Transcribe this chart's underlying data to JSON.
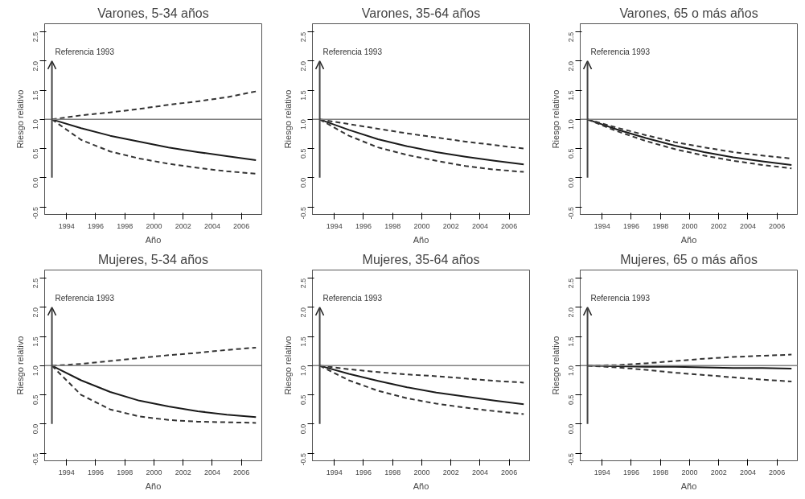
{
  "chart_data": [
    {
      "type": "line",
      "title": "Varones, 5-34 años",
      "xlabel": "Año",
      "ylabel": "Riesgo relativo",
      "x": [
        1993,
        1995,
        1997,
        1999,
        2001,
        2003,
        2005,
        2007
      ],
      "xlim": [
        1992.5,
        2007.4
      ],
      "xticks": [
        1994,
        1996,
        1998,
        2000,
        2002,
        2004,
        2006
      ],
      "ylim": [
        -0.63,
        2.64
      ],
      "yticks": [
        {
          "value": -0.5,
          "label": "-0.5"
        },
        {
          "value": 0,
          "label": "0.0"
        },
        {
          "value": 0.5,
          "label": "0.5"
        },
        {
          "value": 1,
          "label": "1.0"
        },
        {
          "value": 1.5,
          "label": "1.5"
        },
        {
          "value": 2,
          "label": "2.0"
        },
        {
          "value": 2.5,
          "label": "2.5"
        }
      ],
      "grid": false,
      "ref_lines": [
        {
          "axis": "y",
          "value": 1,
          "color": "#808080"
        }
      ],
      "annotations": [
        "Referencia 1993"
      ],
      "series": [
        {
          "color": "#1a1a1a",
          "line_style": "solid",
          "values": [
            1.0,
            0.85,
            0.72,
            0.62,
            0.52,
            0.44,
            0.37,
            0.3
          ]
        },
        {
          "color": "#333333",
          "line_style": "dashed",
          "values": [
            1.0,
            1.07,
            1.12,
            1.18,
            1.25,
            1.31,
            1.38,
            1.48
          ]
        },
        {
          "color": "#333333",
          "line_style": "dashed",
          "values": [
            1.0,
            0.65,
            0.45,
            0.33,
            0.24,
            0.17,
            0.11,
            0.07
          ]
        }
      ]
    },
    {
      "type": "line",
      "title": "Varones, 35-64 años",
      "xlabel": "Año",
      "ylabel": "Riesgo relativo",
      "x": [
        1993,
        1995,
        1997,
        1999,
        2001,
        2003,
        2005,
        2007
      ],
      "xlim": [
        1992.5,
        2007.4
      ],
      "xticks": [
        1994,
        1996,
        1998,
        2000,
        2002,
        2004,
        2006
      ],
      "ylim": [
        -0.63,
        2.64
      ],
      "yticks": [
        {
          "value": -0.5,
          "label": "-0.5"
        },
        {
          "value": 0,
          "label": "0.0"
        },
        {
          "value": 0.5,
          "label": "0.5"
        },
        {
          "value": 1,
          "label": "1.0"
        },
        {
          "value": 1.5,
          "label": "1.5"
        },
        {
          "value": 2,
          "label": "2.0"
        },
        {
          "value": 2.5,
          "label": "2.5"
        }
      ],
      "grid": false,
      "ref_lines": [
        {
          "axis": "y",
          "value": 1,
          "color": "#808080"
        }
      ],
      "annotations": [
        "Referencia 1993"
      ],
      "series": [
        {
          "color": "#1a1a1a",
          "line_style": "solid",
          "values": [
            1.0,
            0.82,
            0.66,
            0.54,
            0.44,
            0.36,
            0.29,
            0.23
          ]
        },
        {
          "color": "#333333",
          "line_style": "dashed",
          "values": [
            1.0,
            0.92,
            0.84,
            0.76,
            0.69,
            0.62,
            0.56,
            0.5
          ]
        },
        {
          "color": "#333333",
          "line_style": "dashed",
          "values": [
            1.0,
            0.72,
            0.52,
            0.39,
            0.29,
            0.2,
            0.14,
            0.1
          ]
        }
      ]
    },
    {
      "type": "line",
      "title": "Varones, 65 o más años",
      "xlabel": "Año",
      "ylabel": "Riesgo relativo",
      "x": [
        1993,
        1995,
        1997,
        1999,
        2001,
        2003,
        2005,
        2007
      ],
      "xlim": [
        1992.5,
        2007.4
      ],
      "xticks": [
        1994,
        1996,
        1998,
        2000,
        2002,
        2004,
        2006
      ],
      "ylim": [
        -0.63,
        2.64
      ],
      "yticks": [
        {
          "value": -0.5,
          "label": "-0.5"
        },
        {
          "value": 0,
          "label": "0.0"
        },
        {
          "value": 0.5,
          "label": "0.5"
        },
        {
          "value": 1,
          "label": "1.0"
        },
        {
          "value": 1.5,
          "label": "1.5"
        },
        {
          "value": 2,
          "label": "2.0"
        },
        {
          "value": 2.5,
          "label": "2.5"
        }
      ],
      "grid": false,
      "ref_lines": [
        {
          "axis": "y",
          "value": 1,
          "color": "#808080"
        }
      ],
      "annotations": [
        "Referencia 1993"
      ],
      "series": [
        {
          "color": "#1a1a1a",
          "line_style": "solid",
          "values": [
            1.0,
            0.83,
            0.68,
            0.55,
            0.44,
            0.35,
            0.28,
            0.22
          ]
        },
        {
          "color": "#333333",
          "line_style": "dashed",
          "values": [
            1.0,
            0.86,
            0.73,
            0.61,
            0.52,
            0.44,
            0.38,
            0.33
          ]
        },
        {
          "color": "#333333",
          "line_style": "dashed",
          "values": [
            1.0,
            0.8,
            0.63,
            0.49,
            0.38,
            0.29,
            0.22,
            0.16
          ]
        }
      ]
    },
    {
      "type": "line",
      "title": "Mujeres, 5-34 años",
      "xlabel": "Año",
      "ylabel": "Riesgo relativo",
      "x": [
        1993,
        1995,
        1997,
        1999,
        2001,
        2003,
        2005,
        2007
      ],
      "xlim": [
        1992.5,
        2007.4
      ],
      "xticks": [
        1994,
        1996,
        1998,
        2000,
        2002,
        2004,
        2006
      ],
      "ylim": [
        -0.63,
        2.64
      ],
      "yticks": [
        {
          "value": -0.5,
          "label": "-0.5"
        },
        {
          "value": 0,
          "label": "0.0"
        },
        {
          "value": 0.5,
          "label": "0.5"
        },
        {
          "value": 1,
          "label": "1.0"
        },
        {
          "value": 1.5,
          "label": "1.5"
        },
        {
          "value": 2,
          "label": "2.0"
        },
        {
          "value": 2.5,
          "label": "2.5"
        }
      ],
      "grid": false,
      "ref_lines": [
        {
          "axis": "y",
          "value": 1,
          "color": "#808080"
        }
      ],
      "annotations": [
        "Referencia 1993"
      ],
      "series": [
        {
          "color": "#1a1a1a",
          "line_style": "solid",
          "values": [
            1.0,
            0.75,
            0.55,
            0.4,
            0.3,
            0.22,
            0.16,
            0.12
          ]
        },
        {
          "color": "#333333",
          "line_style": "dashed",
          "values": [
            1.0,
            1.03,
            1.08,
            1.13,
            1.18,
            1.22,
            1.27,
            1.31
          ]
        },
        {
          "color": "#333333",
          "line_style": "dashed",
          "values": [
            1.0,
            0.5,
            0.25,
            0.13,
            0.07,
            0.04,
            0.03,
            0.02
          ]
        }
      ]
    },
    {
      "type": "line",
      "title": "Mujeres, 35-64 años",
      "xlabel": "Año",
      "ylabel": "Riesgo relativo",
      "x": [
        1993,
        1995,
        1997,
        1999,
        2001,
        2003,
        2005,
        2007
      ],
      "xlim": [
        1992.5,
        2007.4
      ],
      "xticks": [
        1994,
        1996,
        1998,
        2000,
        2002,
        2004,
        2006
      ],
      "ylim": [
        -0.63,
        2.64
      ],
      "yticks": [
        {
          "value": -0.5,
          "label": "-0.5"
        },
        {
          "value": 0,
          "label": "0.0"
        },
        {
          "value": 0.5,
          "label": "0.5"
        },
        {
          "value": 1,
          "label": "1.0"
        },
        {
          "value": 1.5,
          "label": "1.5"
        },
        {
          "value": 2,
          "label": "2.0"
        },
        {
          "value": 2.5,
          "label": "2.5"
        }
      ],
      "grid": false,
      "ref_lines": [
        {
          "axis": "y",
          "value": 1,
          "color": "#808080"
        }
      ],
      "annotations": [
        "Referencia 1993"
      ],
      "series": [
        {
          "color": "#1a1a1a",
          "line_style": "solid",
          "values": [
            1.0,
            0.86,
            0.74,
            0.63,
            0.54,
            0.47,
            0.4,
            0.34
          ]
        },
        {
          "color": "#333333",
          "line_style": "dashed",
          "values": [
            1.0,
            0.94,
            0.89,
            0.85,
            0.82,
            0.78,
            0.74,
            0.71
          ]
        },
        {
          "color": "#333333",
          "line_style": "dashed",
          "values": [
            1.0,
            0.75,
            0.57,
            0.44,
            0.35,
            0.28,
            0.22,
            0.17
          ]
        }
      ]
    },
    {
      "type": "line",
      "title": "Mujeres, 65 o más años",
      "xlabel": "Año",
      "ylabel": "Riesgo relativo",
      "x": [
        1993,
        1995,
        1997,
        1999,
        2001,
        2003,
        2005,
        2007
      ],
      "xlim": [
        1992.5,
        2007.4
      ],
      "xticks": [
        1994,
        1996,
        1998,
        2000,
        2002,
        2004,
        2006
      ],
      "ylim": [
        -0.63,
        2.64
      ],
      "yticks": [
        {
          "value": -0.5,
          "label": "-0.5"
        },
        {
          "value": 0,
          "label": "0.0"
        },
        {
          "value": 0.5,
          "label": "0.5"
        },
        {
          "value": 1,
          "label": "1.0"
        },
        {
          "value": 1.5,
          "label": "1.5"
        },
        {
          "value": 2,
          "label": "2.0"
        },
        {
          "value": 2.5,
          "label": "2.5"
        }
      ],
      "grid": false,
      "ref_lines": [
        {
          "axis": "y",
          "value": 1,
          "color": "#808080"
        }
      ],
      "annotations": [
        "Referencia 1993"
      ],
      "series": [
        {
          "color": "#1a1a1a",
          "line_style": "solid",
          "values": [
            1.0,
            0.99,
            0.98,
            0.98,
            0.97,
            0.96,
            0.96,
            0.95
          ]
        },
        {
          "color": "#333333",
          "line_style": "dashed",
          "values": [
            1.0,
            1.01,
            1.04,
            1.08,
            1.12,
            1.15,
            1.17,
            1.19
          ]
        },
        {
          "color": "#333333",
          "line_style": "dashed",
          "values": [
            1.0,
            0.97,
            0.93,
            0.88,
            0.84,
            0.8,
            0.76,
            0.73
          ]
        }
      ]
    }
  ]
}
